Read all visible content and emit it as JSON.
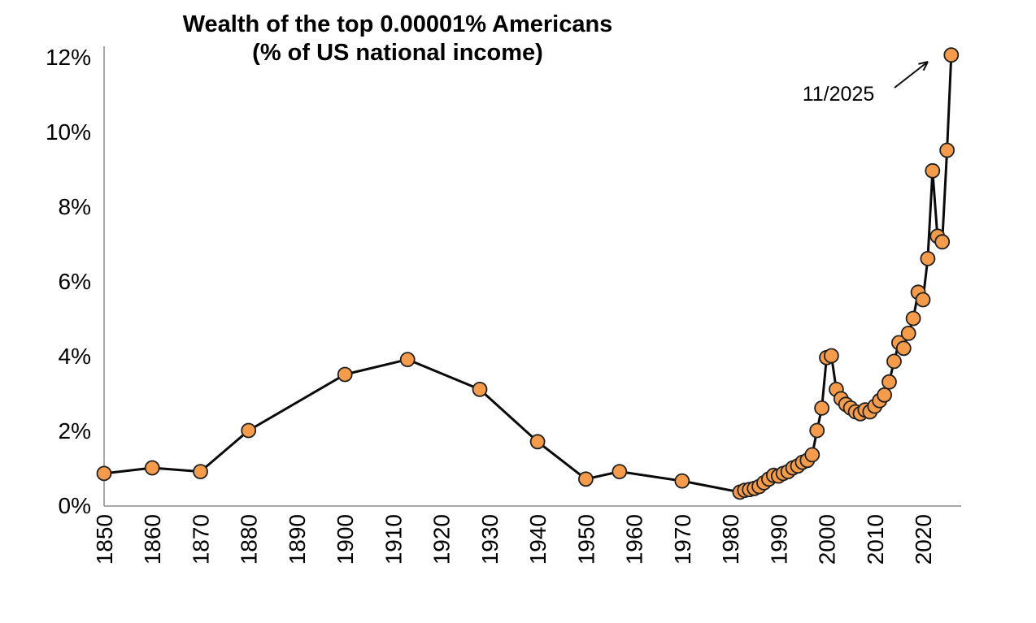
{
  "title": {
    "line1": "Wealth of the top 0.00001% Americans",
    "line2": "(% of US national income)"
  },
  "annotation": {
    "label": "11/2025",
    "target_x": 2025.87,
    "target_y": 12.05
  },
  "colors": {
    "marker_fill": "#F49C4C",
    "marker_stroke": "#202020",
    "line": "#0A0A0A",
    "axis": "#8C8C8C",
    "text": "#000000",
    "background": "#FFFFFF"
  },
  "chart_data": {
    "type": "line",
    "title": "Wealth of the top 0.00001% Americans",
    "subtitle": "(% of US national income)",
    "xlabel": "",
    "ylabel": "",
    "xlim": [
      1850,
      2027
    ],
    "ylim": [
      0,
      12
    ],
    "grid": false,
    "legend_position": "none",
    "x_ticks": [
      1850,
      1860,
      1870,
      1880,
      1890,
      1900,
      1910,
      1920,
      1930,
      1940,
      1950,
      1960,
      1970,
      1980,
      1990,
      2000,
      2010,
      2020
    ],
    "y_ticks": [
      {
        "value": 0,
        "label": "0%"
      },
      {
        "value": 2,
        "label": "2%"
      },
      {
        "value": 4,
        "label": "4%"
      },
      {
        "value": 6,
        "label": "6%"
      },
      {
        "value": 8,
        "label": "8%"
      },
      {
        "value": 10,
        "label": "10%"
      },
      {
        "value": 12,
        "label": "12%"
      }
    ],
    "series": [
      {
        "name": "Top 0.00001% wealth (% of US national income)",
        "marker": "circle",
        "points": [
          [
            1850,
            0.85
          ],
          [
            1860,
            1.0
          ],
          [
            1870,
            0.9
          ],
          [
            1880,
            2.0
          ],
          [
            1900,
            3.5
          ],
          [
            1913,
            3.9
          ],
          [
            1928,
            3.1
          ],
          [
            1940,
            1.7
          ],
          [
            1950,
            0.7
          ],
          [
            1957,
            0.9
          ],
          [
            1970,
            0.65
          ],
          [
            1982,
            0.35
          ],
          [
            1983,
            0.4
          ],
          [
            1984,
            0.42
          ],
          [
            1985,
            0.45
          ],
          [
            1986,
            0.5
          ],
          [
            1987,
            0.6
          ],
          [
            1988,
            0.7
          ],
          [
            1989,
            0.8
          ],
          [
            1990,
            0.78
          ],
          [
            1991,
            0.85
          ],
          [
            1992,
            0.9
          ],
          [
            1993,
            1.0
          ],
          [
            1994,
            1.05
          ],
          [
            1995,
            1.15
          ],
          [
            1996,
            1.2
          ],
          [
            1997,
            1.35
          ],
          [
            1998,
            2.0
          ],
          [
            1999,
            2.6
          ],
          [
            2000,
            3.95
          ],
          [
            2001,
            4.0
          ],
          [
            2002,
            3.1
          ],
          [
            2003,
            2.85
          ],
          [
            2004,
            2.7
          ],
          [
            2005,
            2.6
          ],
          [
            2006,
            2.5
          ],
          [
            2007,
            2.45
          ],
          [
            2008,
            2.55
          ],
          [
            2009,
            2.5
          ],
          [
            2010,
            2.65
          ],
          [
            2011,
            2.8
          ],
          [
            2012,
            2.95
          ],
          [
            2013,
            3.3
          ],
          [
            2014,
            3.85
          ],
          [
            2015,
            4.35
          ],
          [
            2016,
            4.2
          ],
          [
            2017,
            4.6
          ],
          [
            2018,
            5.0
          ],
          [
            2019,
            5.7
          ],
          [
            2020,
            5.5
          ],
          [
            2021,
            6.6
          ],
          [
            2022,
            8.95
          ],
          [
            2023,
            7.2
          ],
          [
            2024,
            7.05
          ],
          [
            2025,
            9.5
          ],
          [
            2025.87,
            12.05
          ]
        ],
        "annotations": [
          {
            "text": "11/2025",
            "x": 2025.87,
            "y": 12.05
          }
        ]
      }
    ]
  }
}
